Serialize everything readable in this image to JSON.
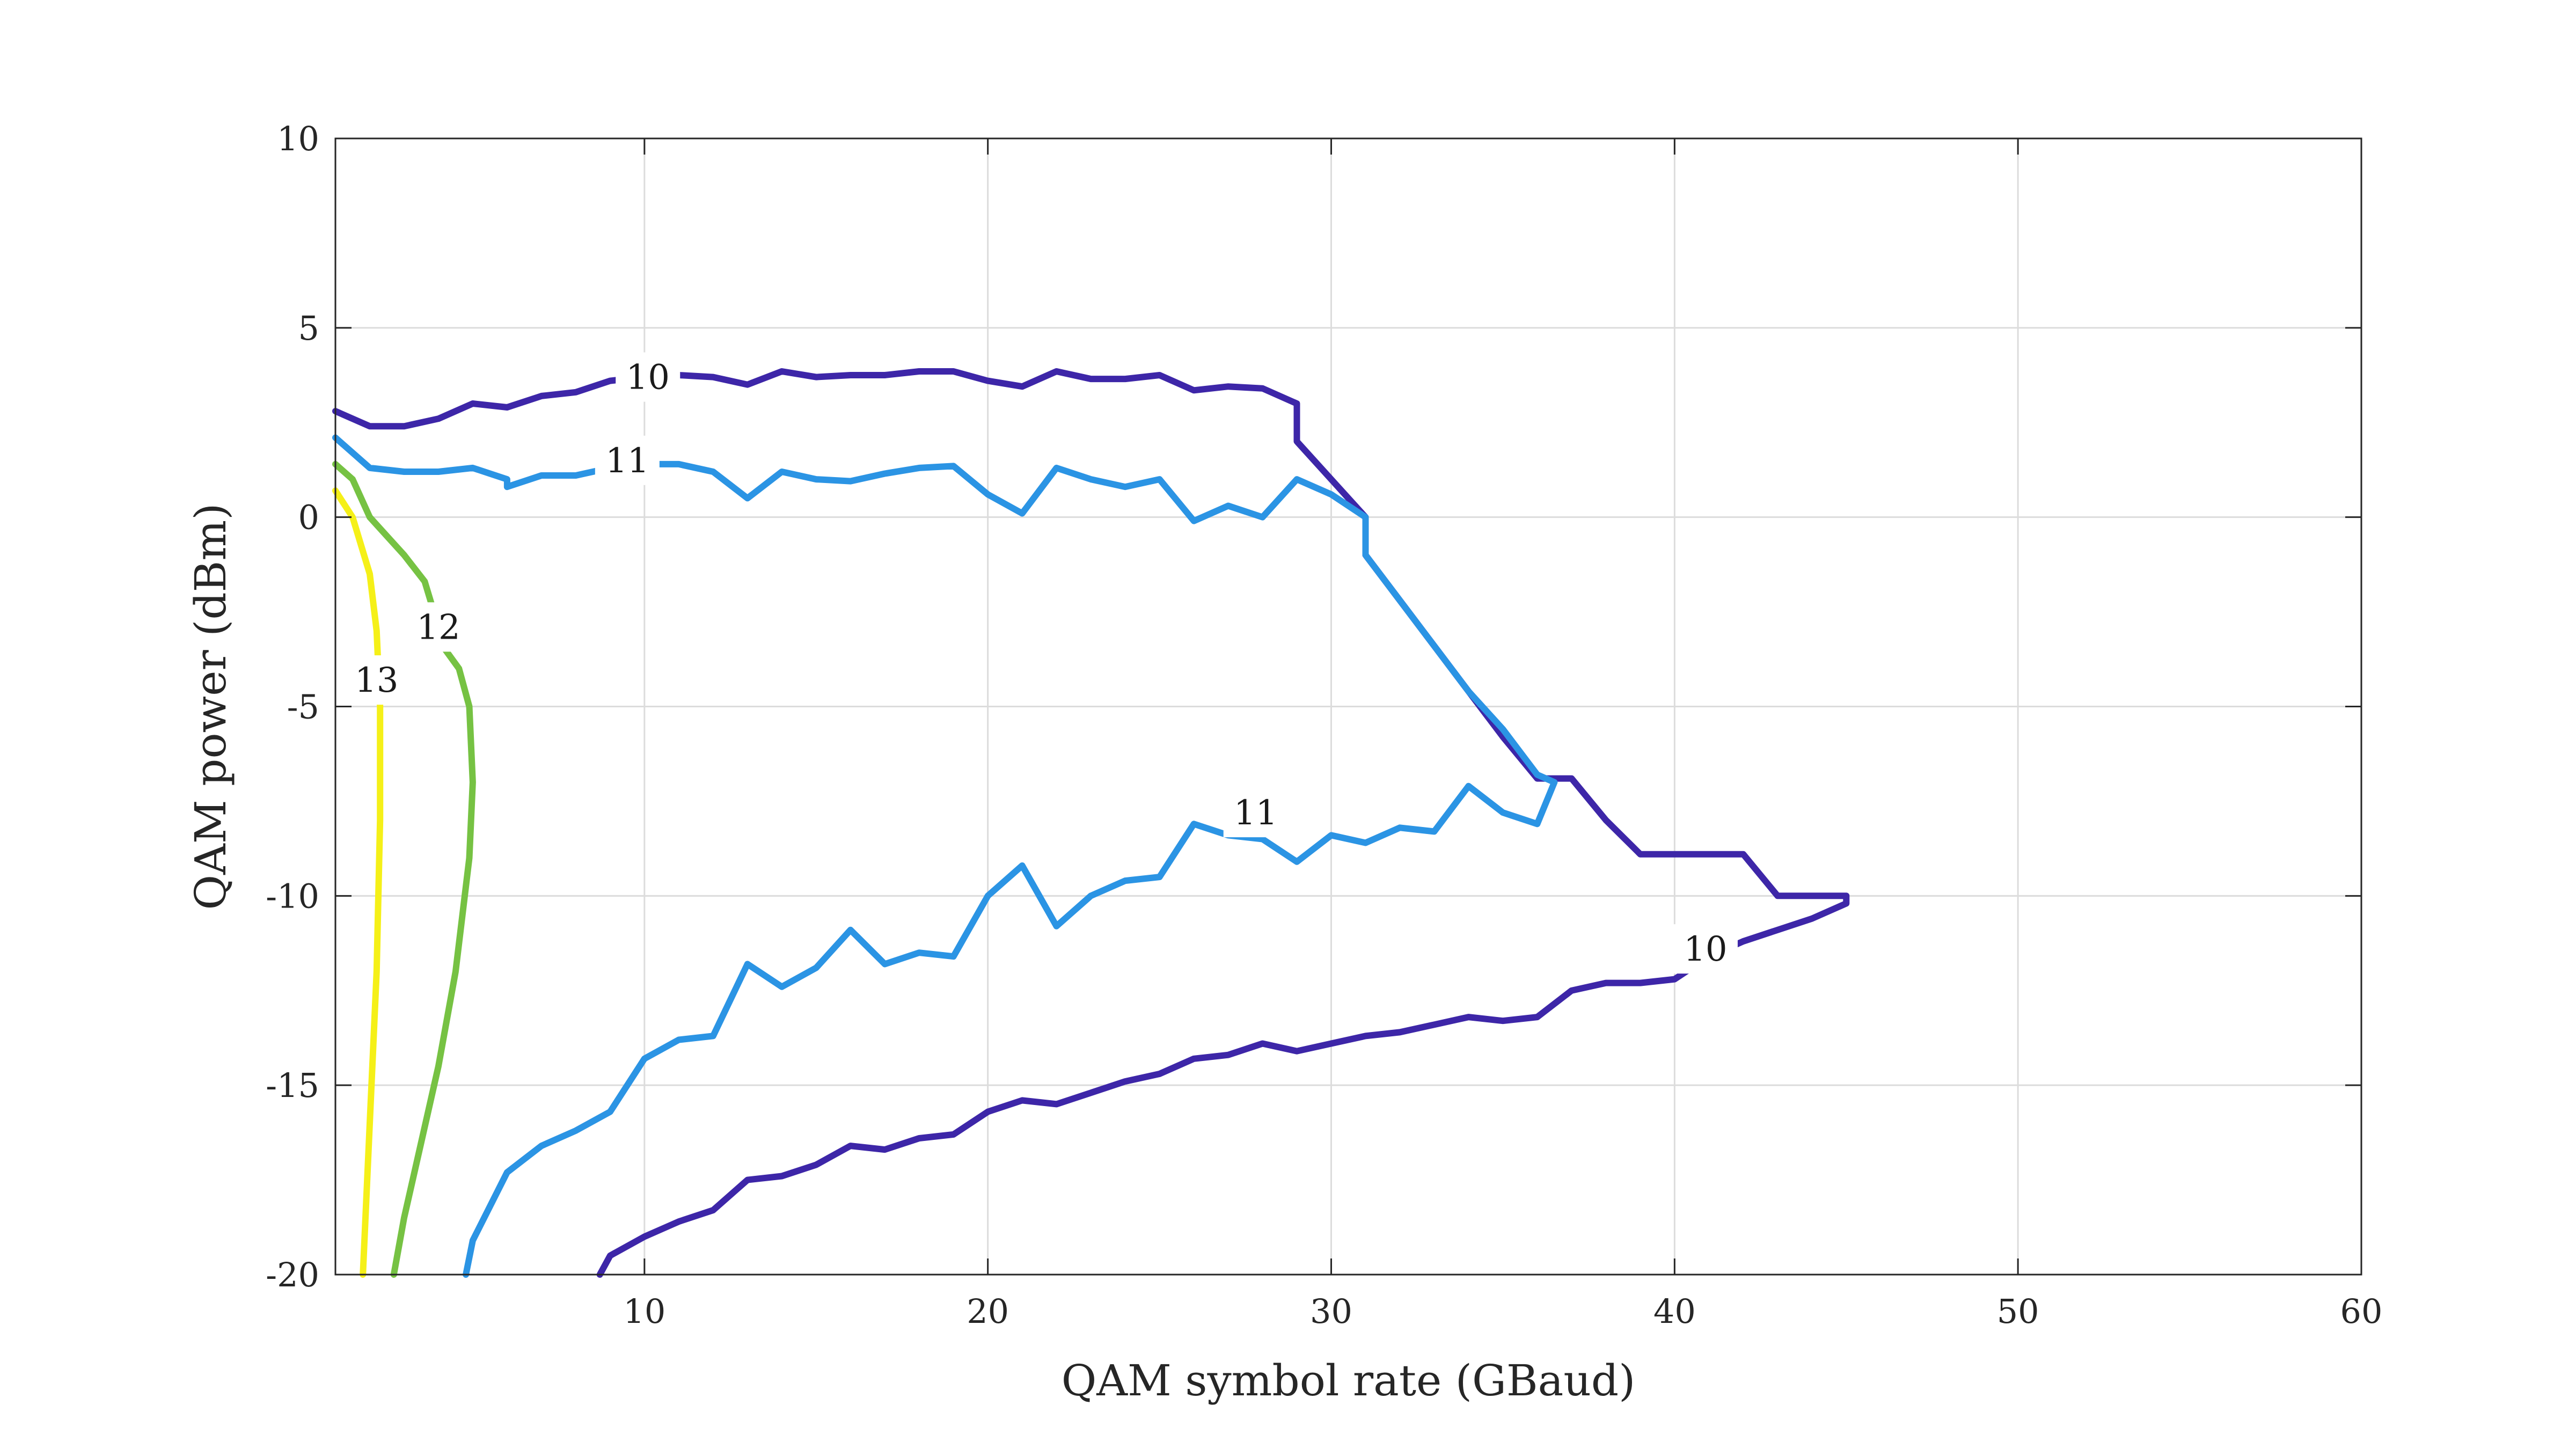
{
  "chart_data": {
    "type": "line",
    "subtype": "contour",
    "title": "",
    "xlabel": "QAM symbol rate (GBaud)",
    "ylabel": "QAM power (dBm)",
    "xlim": [
      1,
      60
    ],
    "ylim": [
      -20,
      10
    ],
    "xticks": [
      10,
      20,
      30,
      40,
      50,
      60
    ],
    "yticks": [
      -20,
      -15,
      -10,
      -5,
      0,
      5,
      10
    ],
    "grid": true,
    "legend": "none",
    "series": [
      {
        "level": "10",
        "color": "#3d26a8",
        "label_positions": [
          [
            10.1,
            3.7
          ],
          [
            40.9,
            -11.4
          ]
        ],
        "x": [
          1,
          2,
          3,
          4,
          5,
          6,
          7,
          8,
          9,
          10,
          11,
          12,
          13,
          14,
          15,
          16,
          17,
          18,
          19,
          20,
          21,
          22,
          23,
          24,
          25,
          26,
          27,
          28,
          29,
          29,
          30,
          31,
          31,
          32,
          33,
          34,
          35,
          36,
          37,
          38,
          39,
          40,
          41,
          42,
          43,
          44,
          45,
          45,
          44,
          43,
          42,
          41,
          40,
          39,
          38,
          37,
          36,
          35,
          34,
          33,
          32,
          31,
          30,
          29,
          28,
          27,
          26,
          25,
          24,
          23,
          22,
          21,
          20,
          19,
          18,
          17,
          16,
          15,
          14,
          13,
          12,
          11,
          10,
          9,
          8.7
        ],
        "y": [
          2.8,
          2.4,
          2.4,
          2.6,
          3.0,
          2.9,
          3.2,
          3.3,
          3.6,
          3.7,
          3.75,
          3.7,
          3.5,
          3.85,
          3.7,
          3.75,
          3.75,
          3.85,
          3.85,
          3.6,
          3.45,
          3.85,
          3.65,
          3.65,
          3.75,
          3.35,
          3.45,
          3.4,
          3.0,
          2.0,
          1.0,
          0.0,
          -1.0,
          -2.2,
          -3.4,
          -4.6,
          -5.8,
          -6.9,
          -6.9,
          -8.0,
          -8.9,
          -8.9,
          -8.9,
          -8.9,
          -10.0,
          -10.0,
          -10.0,
          -10.2,
          -10.6,
          -10.9,
          -11.2,
          -11.6,
          -12.2,
          -12.3,
          -12.3,
          -12.5,
          -13.2,
          -13.3,
          -13.2,
          -13.4,
          -13.6,
          -13.7,
          -13.9,
          -14.1,
          -13.9,
          -14.2,
          -14.3,
          -14.7,
          -14.9,
          -15.2,
          -15.5,
          -15.4,
          -15.7,
          -16.3,
          -16.4,
          -16.7,
          -16.6,
          -17.1,
          -17.4,
          -17.5,
          -18.3,
          -18.6,
          -19.0,
          -19.5,
          -20.0
        ]
      },
      {
        "level": "11",
        "color": "#2b94e4",
        "label_positions": [
          [
            9.5,
            1.5
          ],
          [
            27.8,
            -7.8
          ]
        ],
        "x": [
          1,
          2,
          3,
          4,
          5,
          6,
          6,
          7,
          8,
          9,
          10,
          11,
          12,
          13,
          14,
          15,
          16,
          17,
          18,
          19,
          20,
          21,
          22,
          23,
          24,
          25,
          26,
          27,
          28,
          29,
          30,
          31,
          31,
          32,
          33,
          34,
          35,
          36,
          36.5,
          36,
          35,
          34,
          33,
          32,
          31,
          30,
          29,
          28,
          27,
          26,
          25,
          24,
          23,
          22,
          21,
          20,
          19,
          18,
          17,
          16,
          15,
          14,
          13,
          12,
          11,
          10,
          9,
          8,
          7,
          6,
          5,
          4.8
        ],
        "y": [
          2.1,
          1.3,
          1.2,
          1.2,
          1.3,
          1.0,
          0.8,
          1.1,
          1.1,
          1.3,
          1.4,
          1.4,
          1.2,
          0.5,
          1.2,
          1.0,
          0.95,
          1.15,
          1.3,
          1.35,
          0.6,
          0.1,
          1.3,
          1.0,
          0.8,
          1.0,
          -0.1,
          0.3,
          0.0,
          1.0,
          0.6,
          0.0,
          -1.0,
          -2.2,
          -3.4,
          -4.6,
          -5.6,
          -6.8,
          -7.0,
          -8.1,
          -7.8,
          -7.1,
          -8.3,
          -8.2,
          -8.6,
          -8.4,
          -9.1,
          -8.5,
          -8.4,
          -8.1,
          -9.5,
          -9.6,
          -10.0,
          -10.8,
          -9.2,
          -10.0,
          -11.6,
          -11.5,
          -11.8,
          -10.9,
          -11.9,
          -12.4,
          -11.8,
          -13.7,
          -13.8,
          -14.3,
          -15.7,
          -16.2,
          -16.6,
          -17.3,
          -19.1,
          -20.0
        ]
      },
      {
        "level": "12",
        "color": "#76c243",
        "label_positions": [
          [
            4.0,
            -2.9
          ]
        ],
        "x": [
          1,
          1.5,
          2,
          3,
          3.6,
          4.2,
          4.6,
          4.9,
          5,
          4.9,
          4.5,
          4.0,
          3.5,
          3.0,
          2.7
        ],
        "y": [
          1.4,
          1.0,
          0.0,
          -1.0,
          -1.7,
          -3.5,
          -4.0,
          -5.0,
          -7.0,
          -9.0,
          -12.0,
          -14.5,
          -16.5,
          -18.5,
          -20.0
        ]
      },
      {
        "level": "13",
        "color": "#f5f018",
        "label_positions": [
          [
            2.2,
            -4.3
          ]
        ],
        "x": [
          1,
          1.5,
          2.0,
          2.2,
          2.3,
          2.3,
          2.2,
          2.0,
          1.8
        ],
        "y": [
          0.7,
          0.0,
          -1.5,
          -3.0,
          -5.0,
          -8.0,
          -12.0,
          -16.0,
          -20.0
        ]
      }
    ]
  }
}
